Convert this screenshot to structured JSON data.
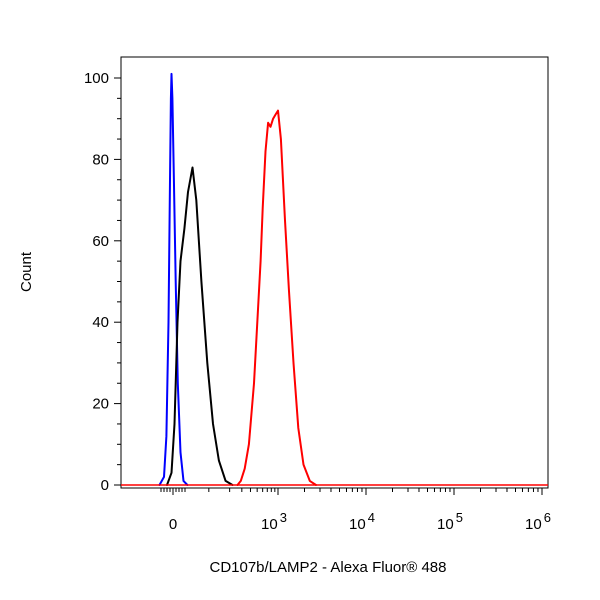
{
  "chart_data": {
    "type": "line",
    "title": "",
    "xlabel": "CD107b/LAMP2 - Alexa Fluor® 488",
    "ylabel": "Count",
    "ylim": [
      0,
      105
    ],
    "xscale": "biexponential",
    "y_ticks": [
      "0",
      "20",
      "40",
      "60",
      "80",
      "100"
    ],
    "y_tick_values": [
      0,
      20,
      40,
      60,
      80,
      100
    ],
    "x_ticks": [
      {
        "value": 0,
        "base": "0",
        "exp": ""
      },
      {
        "value": 1000,
        "base": "10",
        "exp": "3"
      },
      {
        "value": 10000,
        "base": "10",
        "exp": "4"
      },
      {
        "value": 100000,
        "base": "10",
        "exp": "5"
      },
      {
        "value": 1000000,
        "base": "10",
        "exp": "6"
      }
    ],
    "grid": false,
    "legend": "none",
    "series": [
      {
        "color": "#0000ff",
        "points": [
          [
            -45,
            0
          ],
          [
            -30,
            2
          ],
          [
            -22,
            12
          ],
          [
            -15,
            40
          ],
          [
            -10,
            75
          ],
          [
            -7,
            95
          ],
          [
            -5,
            101
          ],
          [
            -2,
            95
          ],
          [
            3,
            75
          ],
          [
            9,
            50
          ],
          [
            16,
            25
          ],
          [
            25,
            8
          ],
          [
            35,
            1
          ],
          [
            48,
            0
          ]
        ]
      },
      {
        "color": "#000000",
        "points": [
          [
            -20,
            0
          ],
          [
            -5,
            3
          ],
          [
            5,
            15
          ],
          [
            15,
            40
          ],
          [
            25,
            55
          ],
          [
            38,
            63
          ],
          [
            50,
            72
          ],
          [
            58,
            78
          ],
          [
            66,
            70
          ],
          [
            78,
            50
          ],
          [
            95,
            30
          ],
          [
            115,
            15
          ],
          [
            140,
            6
          ],
          [
            175,
            1
          ],
          [
            220,
            0
          ]
        ]
      },
      {
        "color": "#ff0000",
        "points": [
          [
            260,
            0
          ],
          [
            290,
            1
          ],
          [
            330,
            4
          ],
          [
            380,
            10
          ],
          [
            450,
            25
          ],
          [
            520,
            45
          ],
          [
            560,
            55
          ],
          [
            600,
            68
          ],
          [
            660,
            82
          ],
          [
            720,
            89
          ],
          [
            780,
            88
          ],
          [
            850,
            90
          ],
          [
            920,
            91
          ],
          [
            1000,
            92
          ],
          [
            1080,
            85
          ],
          [
            1200,
            65
          ],
          [
            1330,
            48
          ],
          [
            1500,
            30
          ],
          [
            1700,
            14
          ],
          [
            1950,
            5
          ],
          [
            2300,
            1
          ],
          [
            2700,
            0
          ]
        ]
      }
    ]
  }
}
